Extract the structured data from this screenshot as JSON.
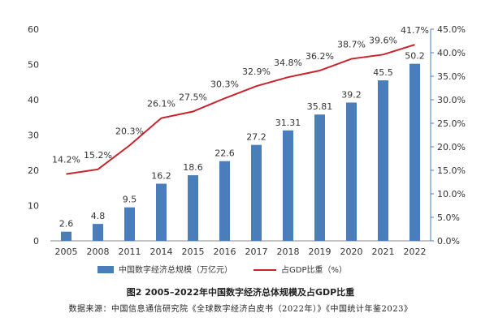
{
  "chart_data": {
    "type": "bar",
    "categories": [
      "2005",
      "2008",
      "2011",
      "2014",
      "2015",
      "2016",
      "2017",
      "2018",
      "2019",
      "2020",
      "2021",
      "2022"
    ],
    "series": [
      {
        "name": "中国数字经济总规模（万亿元）",
        "type": "bar",
        "axis": "left",
        "values": [
          2.6,
          4.8,
          9.5,
          16.2,
          18.6,
          22.6,
          27.2,
          31.31,
          35.81,
          39.2,
          45.5,
          50.2
        ],
        "labels": [
          "2.6",
          "4.8",
          "9.5",
          "16.2",
          "18.6",
          "22.6",
          "27.2",
          "31.31",
          "35.81",
          "39.2",
          "45.5",
          "50.2"
        ],
        "color": "#4a7ebb"
      },
      {
        "name": "占GDP比重（%）",
        "type": "line",
        "axis": "right",
        "values": [
          14.2,
          15.2,
          20.3,
          26.1,
          27.5,
          30.3,
          32.9,
          34.8,
          36.2,
          38.7,
          39.6,
          41.7
        ],
        "labels": [
          "14.2%",
          "15.2%",
          "20.3%",
          "26.1%",
          "27.5%",
          "30.3%",
          "32.9%",
          "34.8%",
          "36.2%",
          "38.7%",
          "39.6%",
          "41.7%"
        ],
        "color": "#c8232c"
      }
    ],
    "ylim_left": [
      0,
      60
    ],
    "yticks_left": [
      "0",
      "10",
      "20",
      "30",
      "40",
      "50",
      "60"
    ],
    "ylim_right": [
      0,
      45
    ],
    "yticks_right": [
      "0.0%",
      "5.0%",
      "10.0%",
      "15.0%",
      "20.0%",
      "25.0%",
      "30.0%",
      "35.0%",
      "40.0%",
      "45.0%"
    ],
    "grid": false,
    "legend_position": "bottom"
  },
  "caption": {
    "title": "图2 2005–2022年中国数字经济总体规模及占GDP比重",
    "source": "数据来源：中国信息通信研究院《全球数字经济白皮书（2022年）》《中国统计年鉴2023》"
  }
}
